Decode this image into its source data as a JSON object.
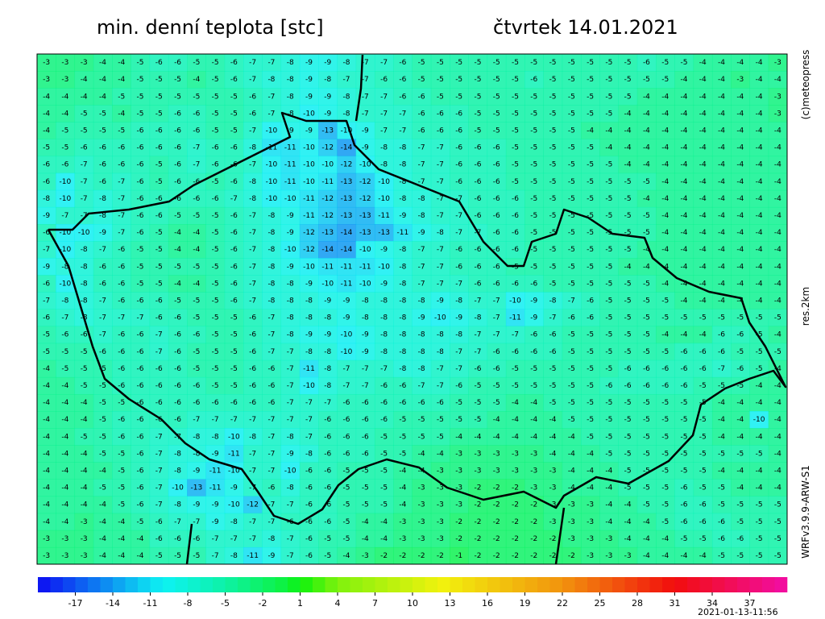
{
  "header": {
    "title": "min. denní teplota [stc]",
    "date": "čtvrtek 14.01.2021"
  },
  "side_labels": [
    "(c)meteopress",
    "res.2km",
    "WRFv3.9.9-ARW-S1"
  ],
  "timestamp": "2021-01-13-11:56",
  "map": {
    "rows": [
      [
        -3,
        -3,
        -3,
        -4,
        -4,
        -5,
        -6,
        -6,
        -5,
        -5,
        -6,
        -7,
        -7,
        -8,
        -9,
        -9,
        -8,
        -7,
        -7,
        -6,
        -5,
        -5,
        -5,
        -5,
        -5,
        -5,
        -5,
        -5,
        -5,
        -5,
        -5,
        -5,
        -6,
        -5,
        -5,
        -4,
        -4,
        -4,
        -4,
        -3
      ],
      [
        -3,
        -3,
        -4,
        -4,
        -4,
        -5,
        -5,
        -5,
        -4,
        -5,
        -6,
        -7,
        -8,
        -8,
        -9,
        -8,
        -7,
        -7,
        -6,
        -6,
        -5,
        -5,
        -5,
        -5,
        -5,
        -5,
        -6,
        -5,
        -5,
        -5,
        -5,
        -5,
        -5,
        -5,
        -4,
        -4,
        -4,
        -3,
        -4,
        -4
      ],
      [
        -4,
        -4,
        -4,
        -4,
        -5,
        -5,
        -5,
        -5,
        -5,
        -5,
        -5,
        -6,
        -7,
        -8,
        -9,
        -9,
        -8,
        -7,
        -7,
        -6,
        -6,
        -5,
        -5,
        -5,
        -5,
        -5,
        -5,
        -5,
        -5,
        -5,
        -5,
        -5,
        -4,
        -4,
        -4,
        -4,
        -4,
        -4,
        -4,
        -3
      ],
      [
        -4,
        -4,
        -5,
        -5,
        -4,
        -5,
        -5,
        -6,
        -6,
        -5,
        -5,
        -6,
        -7,
        -8,
        -10,
        -9,
        -8,
        -7,
        -7,
        -7,
        -6,
        -6,
        -6,
        -5,
        -5,
        -5,
        -5,
        -5,
        -5,
        -5,
        -5,
        -4,
        -4,
        -4,
        -4,
        -4,
        -4,
        -4,
        -4,
        -3
      ],
      [
        -4,
        -5,
        -5,
        -5,
        -5,
        -6,
        -6,
        -6,
        -6,
        -5,
        -5,
        -7,
        -10,
        -9,
        -9,
        -13,
        -10,
        -9,
        -7,
        -7,
        -6,
        -6,
        -6,
        -5,
        -5,
        -5,
        -5,
        -5,
        -5,
        -4,
        -4,
        -4,
        -4,
        -4,
        -4,
        -4,
        -4,
        -4,
        -4,
        -4
      ],
      [
        -5,
        -5,
        -6,
        -6,
        -6,
        -6,
        -6,
        -6,
        -7,
        -6,
        -6,
        -8,
        -11,
        -11,
        -10,
        -12,
        -14,
        -9,
        -8,
        -8,
        -7,
        -7,
        -6,
        -6,
        -6,
        -5,
        -5,
        -5,
        -5,
        -5,
        -4,
        -4,
        -4,
        -4,
        -4,
        -4,
        -4,
        -4,
        -4,
        -4
      ],
      [
        -6,
        -6,
        -7,
        -6,
        -6,
        -6,
        -5,
        -6,
        -7,
        -6,
        -6,
        -7,
        -10,
        -11,
        -10,
        -10,
        -12,
        -10,
        -8,
        -8,
        -7,
        -7,
        -6,
        -6,
        -6,
        -5,
        -5,
        -5,
        -5,
        -5,
        -5,
        -4,
        -4,
        -4,
        -4,
        -4,
        -4,
        -4,
        -4,
        -4
      ],
      [
        -6,
        -10,
        -7,
        -6,
        -7,
        -6,
        -5,
        -6,
        -6,
        -5,
        -6,
        -8,
        -10,
        -11,
        -10,
        -11,
        -13,
        -12,
        -10,
        -8,
        -7,
        -7,
        -6,
        -6,
        -6,
        -5,
        -5,
        -5,
        -5,
        -5,
        -5,
        -5,
        -5,
        -4,
        -4,
        -4,
        -4,
        -4,
        -4,
        -4
      ],
      [
        -8,
        -10,
        -7,
        -8,
        -7,
        -6,
        -6,
        -6,
        -6,
        -6,
        -7,
        -8,
        -10,
        -10,
        -11,
        -12,
        -13,
        -12,
        -10,
        -8,
        -8,
        -7,
        -7,
        -6,
        -6,
        -6,
        -5,
        -5,
        -5,
        -5,
        -5,
        -5,
        -4,
        -4,
        -4,
        -4,
        -4,
        -4,
        -4,
        -4
      ],
      [
        -9,
        -7,
        -7,
        -8,
        -7,
        -6,
        -6,
        -5,
        -5,
        -5,
        -6,
        -7,
        -8,
        -9,
        -11,
        -12,
        -13,
        -13,
        -11,
        -9,
        -8,
        -7,
        -7,
        -6,
        -6,
        -6,
        -5,
        -5,
        -5,
        -5,
        -5,
        -5,
        -5,
        -4,
        -4,
        -4,
        -4,
        -4,
        -4,
        -4
      ],
      [
        -6,
        -10,
        -10,
        -9,
        -7,
        -6,
        -5,
        -4,
        -4,
        -5,
        -6,
        -7,
        -8,
        -9,
        -12,
        -13,
        -14,
        -13,
        -13,
        -11,
        -9,
        -8,
        -7,
        -7,
        -6,
        -6,
        -5,
        -5,
        -5,
        -5,
        -5,
        -5,
        -5,
        -4,
        -4,
        -4,
        -4,
        -4,
        -4,
        -4
      ],
      [
        -7,
        -10,
        -8,
        -7,
        -6,
        -5,
        -5,
        -4,
        -4,
        -5,
        -6,
        -7,
        -8,
        -10,
        -12,
        -14,
        -14,
        -10,
        -9,
        -8,
        -7,
        -7,
        -6,
        -6,
        -6,
        -6,
        -5,
        -5,
        -5,
        -5,
        -5,
        -5,
        -4,
        -4,
        -4,
        -4,
        -4,
        -4,
        -4,
        -4
      ],
      [
        -9,
        -8,
        -8,
        -6,
        -6,
        -5,
        -5,
        -5,
        -5,
        -5,
        -6,
        -7,
        -8,
        -9,
        -10,
        -11,
        -11,
        -11,
        -10,
        -8,
        -7,
        -7,
        -6,
        -6,
        -6,
        -5,
        -5,
        -5,
        -5,
        -5,
        -5,
        -4,
        -4,
        -4,
        -4,
        -4,
        -4,
        -4,
        -4,
        -4
      ],
      [
        -6,
        -10,
        -8,
        -6,
        -6,
        -5,
        -5,
        -4,
        -4,
        -5,
        -6,
        -7,
        -8,
        -8,
        -9,
        -10,
        -11,
        -10,
        -9,
        -8,
        -7,
        -7,
        -7,
        -6,
        -6,
        -6,
        -6,
        -5,
        -5,
        -5,
        -5,
        -5,
        -5,
        -4,
        -4,
        -4,
        -4,
        -4,
        -4,
        -4
      ],
      [
        -7,
        -8,
        -8,
        -7,
        -6,
        -6,
        -6,
        -5,
        -5,
        -5,
        -6,
        -7,
        -8,
        -8,
        -8,
        -9,
        -9,
        -8,
        -8,
        -8,
        -8,
        -9,
        -8,
        -7,
        -7,
        -10,
        -9,
        -8,
        -7,
        -6,
        -5,
        -5,
        -5,
        -5,
        -4,
        -4,
        -4,
        -4,
        -4,
        -4
      ],
      [
        -6,
        -7,
        -8,
        -7,
        -7,
        -7,
        -6,
        -6,
        -5,
        -5,
        -5,
        -6,
        -7,
        -8,
        -8,
        -8,
        -9,
        -8,
        -8,
        -8,
        -9,
        -10,
        -9,
        -8,
        -7,
        -11,
        -9,
        -7,
        -6,
        -6,
        -5,
        -5,
        -5,
        -5,
        -5,
        -5,
        -5,
        -5,
        -5,
        -5
      ],
      [
        -5,
        -6,
        -6,
        -7,
        -6,
        -6,
        -7,
        -6,
        -6,
        -5,
        -5,
        -6,
        -7,
        -8,
        -9,
        -9,
        -10,
        -9,
        -8,
        -8,
        -8,
        -8,
        -8,
        -7,
        -7,
        -7,
        -6,
        -6,
        -5,
        -5,
        -5,
        -5,
        -5,
        -4,
        -4,
        -4,
        -6,
        -6,
        -5,
        -4
      ],
      [
        -5,
        -5,
        -5,
        -6,
        -6,
        -6,
        -7,
        -6,
        -5,
        -5,
        -5,
        -6,
        -7,
        -7,
        -8,
        -8,
        -10,
        -9,
        -8,
        -8,
        -8,
        -8,
        -7,
        -7,
        -6,
        -6,
        -6,
        -6,
        -5,
        -5,
        -5,
        -5,
        -5,
        -5,
        -6,
        -6,
        -6,
        -5,
        -5,
        -5
      ],
      [
        -4,
        -5,
        -5,
        -5,
        -6,
        -6,
        -6,
        -6,
        -5,
        -5,
        -5,
        -6,
        -6,
        -7,
        -11,
        -8,
        -7,
        -7,
        -7,
        -8,
        -8,
        -7,
        -7,
        -6,
        -6,
        -5,
        -5,
        -5,
        -5,
        -5,
        -5,
        -6,
        -6,
        -6,
        -6,
        -6,
        -7,
        -6,
        -5,
        -4
      ],
      [
        -4,
        -4,
        -5,
        -5,
        -6,
        -6,
        -6,
        -6,
        -6,
        -5,
        -5,
        -6,
        -6,
        -7,
        -10,
        -8,
        -7,
        -7,
        -6,
        -6,
        -7,
        -7,
        -6,
        -5,
        -5,
        -5,
        -5,
        -5,
        -5,
        -5,
        -6,
        -6,
        -6,
        -6,
        -6,
        -5,
        -5,
        -5,
        -4,
        -4
      ],
      [
        -4,
        -4,
        -4,
        -5,
        -5,
        -6,
        -6,
        -6,
        -6,
        -6,
        -6,
        -6,
        -6,
        -7,
        -7,
        -7,
        -6,
        -6,
        -6,
        -6,
        -6,
        -6,
        -5,
        -5,
        -5,
        -4,
        -4,
        -5,
        -5,
        -5,
        -5,
        -5,
        -5,
        -5,
        -5,
        -5,
        -4,
        -4,
        -4,
        -4
      ],
      [
        -4,
        -4,
        -4,
        -5,
        -6,
        -6,
        -6,
        -6,
        -7,
        -7,
        -7,
        -7,
        -7,
        -7,
        -7,
        -6,
        -6,
        -6,
        -6,
        -5,
        -5,
        -5,
        -5,
        -5,
        -4,
        -4,
        -4,
        -4,
        -5,
        -5,
        -5,
        -5,
        -5,
        -5,
        -5,
        -5,
        -4,
        -4,
        -10,
        -4
      ],
      [
        -4,
        -4,
        -5,
        -5,
        -6,
        -6,
        -7,
        -7,
        -8,
        -8,
        -10,
        -8,
        -7,
        -8,
        -7,
        -6,
        -6,
        -6,
        -5,
        -5,
        -5,
        -5,
        -4,
        -4,
        -4,
        -4,
        -4,
        -4,
        -4,
        -5,
        -5,
        -5,
        -5,
        -5,
        -5,
        -5,
        -4,
        -4,
        -4,
        -4
      ],
      [
        -4,
        -4,
        -4,
        -5,
        -5,
        -6,
        -7,
        -8,
        -8,
        -9,
        -11,
        -7,
        -7,
        -9,
        -8,
        -6,
        -6,
        -6,
        -5,
        -5,
        -4,
        -4,
        -3,
        -3,
        -3,
        -3,
        -3,
        -4,
        -4,
        -4,
        -5,
        -5,
        -5,
        -5,
        -5,
        -5,
        -5,
        -5,
        -5,
        -4
      ],
      [
        -4,
        -4,
        -4,
        -4,
        -5,
        -6,
        -7,
        -8,
        -9,
        -11,
        -10,
        -7,
        -7,
        -10,
        -6,
        -6,
        -5,
        -5,
        -5,
        -4,
        -4,
        -3,
        -3,
        -3,
        -3,
        -3,
        -3,
        -3,
        -4,
        -4,
        -4,
        -5,
        -5,
        -5,
        -5,
        -5,
        -4,
        -4,
        -4,
        -4
      ],
      [
        -4,
        -4,
        -4,
        -5,
        -5,
        -6,
        -7,
        -10,
        -13,
        -11,
        -9,
        -7,
        -6,
        -8,
        -6,
        -6,
        -5,
        -5,
        -5,
        -4,
        -3,
        -3,
        -3,
        -2,
        -2,
        -2,
        -3,
        -3,
        -4,
        -4,
        -4,
        -5,
        -5,
        -5,
        -6,
        -5,
        -5,
        -4,
        -4,
        -4
      ],
      [
        -4,
        -4,
        -4,
        -4,
        -5,
        -6,
        -7,
        -8,
        -9,
        -9,
        -10,
        -12,
        -7,
        -7,
        -6,
        -6,
        -5,
        -5,
        -5,
        -4,
        -3,
        -3,
        -3,
        -2,
        -2,
        -2,
        -2,
        -3,
        -3,
        -3,
        -4,
        -4,
        -5,
        -5,
        -6,
        -6,
        -5,
        -5,
        -5,
        -5
      ],
      [
        -4,
        -4,
        -3,
        -4,
        -4,
        -5,
        -6,
        -7,
        -7,
        -9,
        -8,
        -7,
        -7,
        -6,
        -6,
        -6,
        -5,
        -4,
        -4,
        -3,
        -3,
        -3,
        -2,
        -2,
        -2,
        -2,
        -2,
        -3,
        -3,
        -3,
        -4,
        -4,
        -4,
        -5,
        -6,
        -6,
        -6,
        -5,
        -5,
        -5
      ],
      [
        -3,
        -3,
        -3,
        -4,
        -4,
        -4,
        -6,
        -6,
        -6,
        -7,
        -7,
        -7,
        -8,
        -7,
        -6,
        -5,
        -5,
        -4,
        -4,
        -3,
        -3,
        -3,
        -2,
        -2,
        -2,
        -2,
        -2,
        -2,
        -3,
        -3,
        -3,
        -4,
        -4,
        -4,
        -5,
        -5,
        -6,
        -6,
        -5,
        -5
      ],
      [
        -3,
        -3,
        -3,
        -4,
        -4,
        -4,
        -5,
        -5,
        -5,
        -7,
        -8,
        -11,
        -9,
        -7,
        -6,
        -5,
        -4,
        -3,
        -2,
        -2,
        -2,
        -2,
        -1,
        -2,
        -2,
        -2,
        -2,
        -2,
        -2,
        -3,
        -3,
        -3,
        -4,
        -4,
        -4,
        -4,
        -5,
        -5,
        -5,
        -5
      ]
    ]
  },
  "legend": {
    "range": [
      -20,
      40
    ],
    "ticks": [
      -17,
      -14,
      -11,
      -8,
      -5,
      -2,
      1,
      4,
      7,
      10,
      13,
      16,
      19,
      22,
      25,
      28,
      31,
      34,
      37
    ]
  }
}
